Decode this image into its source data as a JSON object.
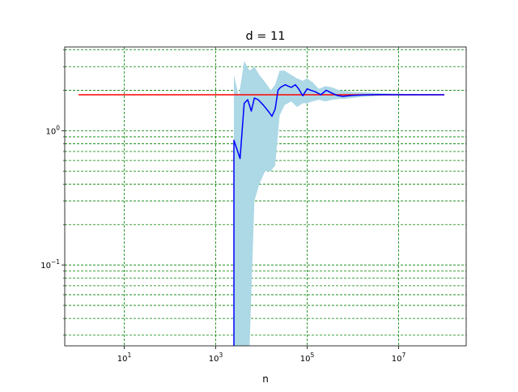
{
  "chart_data": {
    "type": "line",
    "title": "d = 11",
    "xlabel": "n",
    "ylabel": "",
    "xscale": "log",
    "yscale": "log",
    "xlim": [
      0.5,
      300000000
    ],
    "ylim": [
      0.025,
      4.2
    ],
    "grid": true,
    "grid_color": "#008000",
    "grid_style": "dashed",
    "x_ticks": [
      {
        "value": 10,
        "label": "10",
        "exp": "1"
      },
      {
        "value": 1000,
        "label": "10",
        "exp": "3"
      },
      {
        "value": 100000,
        "label": "10",
        "exp": "5"
      },
      {
        "value": 10000000,
        "label": "10",
        "exp": "7"
      }
    ],
    "y_ticks": [
      {
        "value": 0.1,
        "label": "10",
        "exp": "−1"
      },
      {
        "value": 1,
        "label": "10",
        "exp": "0"
      }
    ],
    "y_minor_grid": [
      0.03,
      0.04,
      0.05,
      0.06,
      0.07,
      0.08,
      0.09,
      0.2,
      0.3,
      0.4,
      0.5,
      0.6,
      0.7,
      0.8,
      0.9,
      2,
      3,
      4
    ],
    "reference_line": {
      "color": "#ff0000",
      "x": [
        1,
        100000000
      ],
      "y": [
        1.85,
        1.85
      ]
    },
    "band": {
      "color": "#add8e6",
      "x": [
        2500,
        3200,
        4200,
        5500,
        7000,
        9000,
        12000,
        16000,
        20000,
        25000,
        32000,
        45000,
        60000,
        80000,
        100000,
        130000,
        180000,
        250000,
        350000,
        500000,
        700000,
        1000000,
        1500000,
        2500000,
        4000000,
        7000000,
        12000000,
        25000000,
        50000000,
        100000000
      ],
      "lower": [
        0.025,
        0.025,
        0.025,
        0.025,
        0.3,
        0.4,
        0.5,
        0.5,
        0.55,
        1.3,
        1.55,
        1.65,
        1.5,
        1.6,
        1.6,
        1.65,
        1.7,
        1.65,
        1.7,
        1.72,
        1.73,
        1.75,
        1.78,
        1.8,
        1.82,
        1.83,
        1.84,
        1.84,
        1.85,
        1.85
      ],
      "upper": [
        2.6,
        1.8,
        3.3,
        2.8,
        3.0,
        2.6,
        2.3,
        2.0,
        2.2,
        2.8,
        2.8,
        2.6,
        2.45,
        2.35,
        2.45,
        2.3,
        2.05,
        2.15,
        2.1,
        2.0,
        1.97,
        1.94,
        1.93,
        1.92,
        1.9,
        1.89,
        1.88,
        1.87,
        1.87,
        1.86
      ]
    },
    "series": [
      {
        "color": "#0000ff",
        "x": [
          2500,
          2500,
          3400,
          4200,
          5000,
          6000,
          7000,
          8500,
          11000,
          14000,
          17000,
          20000,
          23000,
          26000,
          33000,
          38000,
          45000,
          55000,
          65000,
          80000,
          100000,
          120000,
          150000,
          200000,
          260000,
          350000,
          450000,
          600000,
          800000,
          1000000,
          1500000,
          2500000,
          4000000,
          7000000,
          12000000,
          25000000,
          50000000,
          100000000
        ],
        "y": [
          0.025,
          0.85,
          0.62,
          1.6,
          1.7,
          1.4,
          1.75,
          1.7,
          1.55,
          1.4,
          1.28,
          1.45,
          2.0,
          2.1,
          2.2,
          2.15,
          2.1,
          2.2,
          2.05,
          1.82,
          2.05,
          2.0,
          1.95,
          1.85,
          2.0,
          1.9,
          1.83,
          1.8,
          1.82,
          1.83,
          1.84,
          1.85,
          1.86,
          1.85,
          1.85,
          1.85,
          1.85,
          1.85
        ]
      }
    ]
  }
}
